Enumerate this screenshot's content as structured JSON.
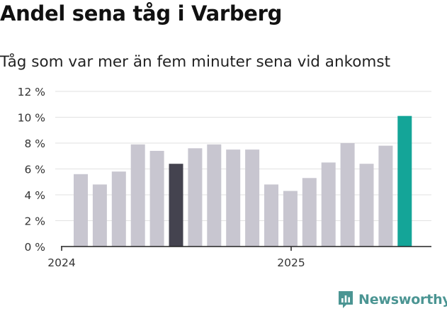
{
  "header": {
    "title": "Andel sena tåg i Varberg",
    "subtitle": "Tåg som var mer än fem minuter sena vid ankomst"
  },
  "brand": {
    "name": "Newsworthy",
    "icon": "bar-chart-logo-icon",
    "color": "#4b9593"
  },
  "colors": {
    "bar": "#c8c6d0",
    "highlight_dark": "#44434f",
    "highlight_teal": "#14a598",
    "grid": "#e2e2e2",
    "axis": "#222222"
  },
  "chart_data": {
    "type": "bar",
    "title": "Andel sena tåg i Varberg",
    "subtitle": "Tåg som var mer än fem minuter sena vid ankomst",
    "categories": [
      "2024-01",
      "2024-02",
      "2024-03",
      "2024-04",
      "2024-05",
      "2024-06",
      "2024-07",
      "2024-08",
      "2024-09",
      "2024-10",
      "2024-11",
      "2024-12",
      "2025-01",
      "2025-02",
      "2025-03",
      "2025-04",
      "2025-05",
      "2025-06"
    ],
    "values": [
      5.6,
      4.8,
      5.8,
      7.9,
      7.4,
      6.4,
      7.6,
      7.9,
      7.5,
      7.5,
      4.8,
      4.3,
      5.3,
      6.5,
      8.0,
      6.4,
      7.8,
      10.1
    ],
    "highlight": {
      "2024-06": "dark",
      "2025-06": "teal"
    },
    "xlabel": "",
    "ylabel": "",
    "ylim": [
      0,
      12
    ],
    "yticks": [
      0,
      2,
      4,
      6,
      8,
      10,
      12
    ],
    "ytick_labels": [
      "0 %",
      "2 %",
      "4 %",
      "6 %",
      "8 %",
      "10 %",
      "12 %"
    ],
    "xtick_labels": [
      {
        "label": "2024",
        "at": "2024-01"
      },
      {
        "label": "2025",
        "at": "2025-01"
      }
    ],
    "grid": true,
    "legend": "none"
  }
}
